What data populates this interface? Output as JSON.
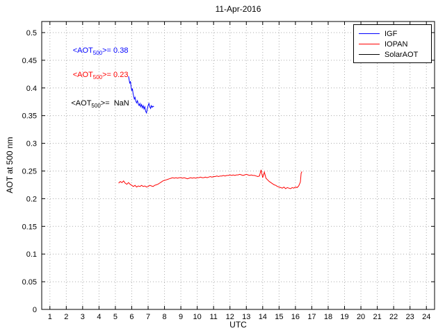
{
  "figure": {
    "background": "#ffffff"
  },
  "chart_data": {
    "type": "line",
    "title": "11-Apr-2016",
    "xlabel": "UTC",
    "ylabel": "AOT at 500 nm",
    "xlim": [
      0.5,
      24.5
    ],
    "ylim": [
      0,
      0.52
    ],
    "grid": true,
    "grid_color": "#aaaaaa",
    "axis_color": "#000000",
    "x_ticks": [
      1,
      2,
      3,
      4,
      5,
      6,
      7,
      8,
      9,
      10,
      11,
      12,
      13,
      14,
      15,
      16,
      17,
      18,
      19,
      20,
      21,
      22,
      23,
      24
    ],
    "y_ticks": [
      {
        "value": 0,
        "label": "0"
      },
      {
        "value": 0.05,
        "label": "0.05"
      },
      {
        "value": 0.1,
        "label": "0.1"
      },
      {
        "value": 0.15,
        "label": "0.15"
      },
      {
        "value": 0.2,
        "label": "0.2"
      },
      {
        "value": 0.25,
        "label": "0.25"
      },
      {
        "value": 0.3,
        "label": "0.3"
      },
      {
        "value": 0.35,
        "label": "0.35"
      },
      {
        "value": 0.4,
        "label": "0.4"
      },
      {
        "value": 0.45,
        "label": "0.45"
      },
      {
        "value": 0.5,
        "label": "0.5"
      }
    ],
    "legend": {
      "position": "top-right",
      "items": [
        {
          "label": "IGF",
          "color": "#0000ff"
        },
        {
          "label": "IOPAN",
          "color": "#ff0000"
        },
        {
          "label": "SolarAOT",
          "color": "#000000"
        }
      ]
    },
    "annotations": [
      {
        "series": "IGF",
        "prefix": "<AOT",
        "sub": "500",
        "suffix": ">= 0.38",
        "color": "#0000ff",
        "x": 2.4,
        "y": 0.468
      },
      {
        "series": "IOPAN",
        "prefix": "<AOT",
        "sub": "500",
        "suffix": ">= 0.23",
        "color": "#ff0000",
        "x": 2.4,
        "y": 0.424
      },
      {
        "series": "SolarAOT",
        "prefix": "<AOT",
        "sub": "500",
        "suffix": ">=  NaN",
        "color": "#000000",
        "x": 2.3,
        "y": 0.372
      }
    ],
    "series": [
      {
        "name": "IGF",
        "color": "#0000ff",
        "x": [
          5.8,
          5.84,
          5.88,
          5.92,
          5.96,
          6.0,
          6.04,
          6.08,
          6.12,
          6.16,
          6.2,
          6.25,
          6.3,
          6.35,
          6.4,
          6.45,
          6.5,
          6.55,
          6.6,
          6.65,
          6.7,
          6.75,
          6.8,
          6.85,
          6.9,
          6.95,
          7.0,
          7.05,
          7.1,
          7.15,
          7.2,
          7.25,
          7.3,
          7.35
        ],
        "y": [
          0.421,
          0.415,
          0.408,
          0.412,
          0.402,
          0.395,
          0.399,
          0.39,
          0.385,
          0.38,
          0.383,
          0.376,
          0.373,
          0.377,
          0.371,
          0.368,
          0.372,
          0.366,
          0.37,
          0.364,
          0.368,
          0.362,
          0.366,
          0.358,
          0.355,
          0.362,
          0.368,
          0.372,
          0.366,
          0.363,
          0.368,
          0.365,
          0.367,
          0.366
        ]
      },
      {
        "name": "IOPAN",
        "color": "#ff0000",
        "x": [
          5.2,
          5.3,
          5.4,
          5.5,
          5.6,
          5.7,
          5.8,
          5.9,
          6.0,
          6.1,
          6.2,
          6.3,
          6.4,
          6.5,
          6.6,
          6.7,
          6.8,
          6.9,
          7.0,
          7.1,
          7.2,
          7.3,
          7.4,
          7.5,
          7.6,
          7.7,
          7.8,
          7.9,
          8.0,
          8.1,
          8.2,
          8.3,
          8.4,
          8.5,
          8.6,
          8.7,
          8.8,
          8.9,
          9.0,
          9.1,
          9.2,
          9.3,
          9.4,
          9.5,
          9.6,
          9.7,
          9.8,
          9.9,
          10.0,
          10.1,
          10.2,
          10.3,
          10.4,
          10.5,
          10.6,
          10.7,
          10.8,
          10.9,
          11.0,
          11.1,
          11.2,
          11.3,
          11.4,
          11.5,
          11.6,
          11.7,
          11.8,
          11.9,
          12.0,
          12.1,
          12.2,
          12.3,
          12.4,
          12.5,
          12.6,
          12.7,
          12.8,
          12.9,
          13.0,
          13.1,
          13.2,
          13.3,
          13.4,
          13.5,
          13.6,
          13.7,
          13.8,
          13.9,
          14.0,
          14.1,
          14.2,
          14.3,
          14.4,
          14.5,
          14.6,
          14.7,
          14.8,
          14.9,
          15.0,
          15.1,
          15.2,
          15.3,
          15.4,
          15.5,
          15.6,
          15.7,
          15.8,
          15.9,
          16.0,
          16.1,
          16.2,
          16.3,
          16.35,
          16.4
        ],
        "y": [
          0.228,
          0.231,
          0.229,
          0.232,
          0.228,
          0.226,
          0.229,
          0.226,
          0.224,
          0.222,
          0.224,
          0.221,
          0.223,
          0.222,
          0.224,
          0.222,
          0.223,
          0.221,
          0.222,
          0.224,
          0.223,
          0.222,
          0.224,
          0.225,
          0.226,
          0.228,
          0.23,
          0.232,
          0.233,
          0.234,
          0.235,
          0.236,
          0.237,
          0.238,
          0.237,
          0.238,
          0.237,
          0.238,
          0.238,
          0.237,
          0.238,
          0.237,
          0.236,
          0.237,
          0.238,
          0.237,
          0.238,
          0.237,
          0.238,
          0.238,
          0.239,
          0.238,
          0.238,
          0.239,
          0.238,
          0.239,
          0.24,
          0.239,
          0.24,
          0.24,
          0.241,
          0.24,
          0.241,
          0.241,
          0.242,
          0.241,
          0.242,
          0.242,
          0.243,
          0.242,
          0.243,
          0.242,
          0.243,
          0.243,
          0.244,
          0.243,
          0.242,
          0.243,
          0.244,
          0.243,
          0.242,
          0.243,
          0.242,
          0.242,
          0.241,
          0.24,
          0.241,
          0.252,
          0.238,
          0.248,
          0.237,
          0.234,
          0.231,
          0.229,
          0.227,
          0.225,
          0.224,
          0.222,
          0.221,
          0.22,
          0.219,
          0.221,
          0.218,
          0.22,
          0.219,
          0.218,
          0.22,
          0.219,
          0.221,
          0.22,
          0.223,
          0.23,
          0.246,
          0.249
        ]
      },
      {
        "name": "SolarAOT",
        "color": "#000000",
        "x": [],
        "y": []
      }
    ]
  }
}
